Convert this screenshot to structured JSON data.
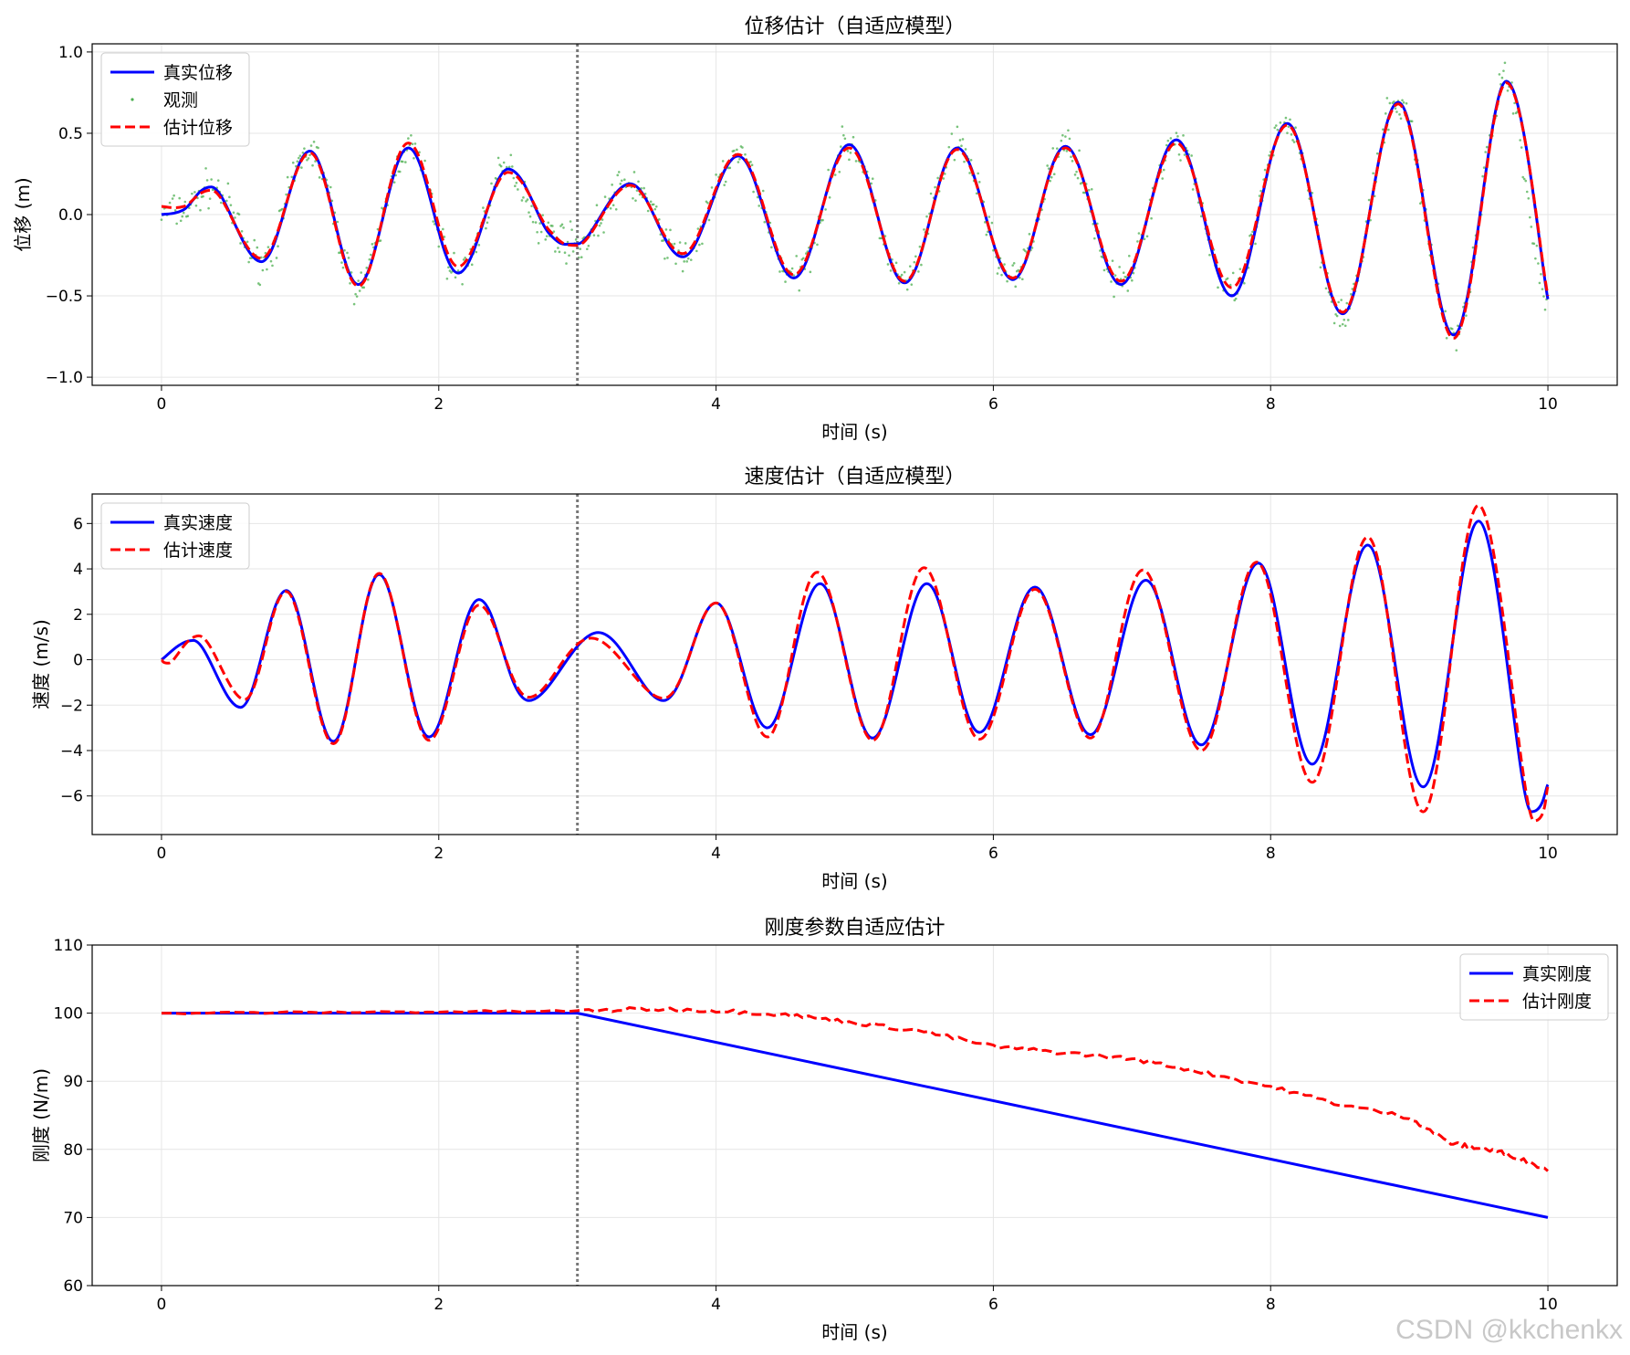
{
  "watermark": "CSDN @kkchenkx",
  "colors": {
    "true_line": "#0000ff",
    "estimate_line": "#ff0000",
    "observation": "#4caf50",
    "change_marker": "#777777",
    "grid": "#e6e6e6"
  },
  "change_time": 3,
  "chart_data": [
    {
      "type": "line",
      "title": "位移估计（自适应模型）",
      "xlabel": "时间 (s)",
      "ylabel": "位移 (m)",
      "xlim": [
        -0.5,
        10.5
      ],
      "ylim": [
        -1.05,
        1.05
      ],
      "xticks": [
        0,
        2,
        4,
        6,
        8,
        10
      ],
      "yticks": [
        -1.0,
        -0.5,
        0.0,
        0.5,
        1.0
      ],
      "ytick_labels": [
        "−1.0",
        "−0.5",
        "0.0",
        "0.5",
        "1.0"
      ],
      "grid": true,
      "legend_position": "upper-left",
      "series": [
        {
          "name": "真实位移",
          "style": "solid",
          "color": "#0000ff",
          "x": [
            0,
            0.16,
            0.36,
            0.72,
            1.07,
            1.42,
            1.78,
            2.14,
            2.5,
            2.8,
            3.0,
            3.38,
            3.76,
            4.16,
            4.56,
            4.96,
            5.36,
            5.74,
            6.14,
            6.52,
            6.92,
            7.32,
            7.72,
            8.12,
            8.52,
            8.92,
            9.32,
            9.7,
            10.0
          ],
          "values": [
            0.0,
            0.03,
            0.17,
            -0.29,
            0.39,
            -0.43,
            0.41,
            -0.36,
            0.28,
            -0.12,
            -0.18,
            0.19,
            -0.26,
            0.36,
            -0.39,
            0.43,
            -0.42,
            0.41,
            -0.4,
            0.42,
            -0.43,
            0.46,
            -0.5,
            0.56,
            -0.61,
            0.69,
            -0.74,
            0.82,
            -0.52
          ]
        },
        {
          "name": "观测",
          "style": "dots",
          "color": "#4caf50"
        },
        {
          "name": "估计位移",
          "style": "dashed",
          "color": "#ff0000",
          "x": [
            0,
            0.16,
            0.36,
            0.72,
            1.07,
            1.42,
            1.78,
            2.14,
            2.5,
            2.8,
            3.0,
            3.38,
            3.76,
            4.16,
            4.56,
            4.96,
            5.36,
            5.74,
            6.14,
            6.52,
            6.92,
            7.32,
            7.72,
            8.12,
            8.52,
            8.92,
            9.32,
            9.7,
            10.0
          ],
          "values": [
            0.05,
            0.05,
            0.15,
            -0.27,
            0.38,
            -0.44,
            0.44,
            -0.32,
            0.26,
            -0.1,
            -0.19,
            0.18,
            -0.24,
            0.37,
            -0.37,
            0.41,
            -0.41,
            0.4,
            -0.39,
            0.41,
            -0.41,
            0.44,
            -0.45,
            0.55,
            -0.6,
            0.68,
            -0.76,
            0.81,
            -0.5
          ]
        }
      ]
    },
    {
      "type": "line",
      "title": "速度估计（自适应模型）",
      "xlabel": "时间 (s)",
      "ylabel": "速度 (m/s)",
      "xlim": [
        -0.5,
        10.5
      ],
      "ylim": [
        -7.7,
        7.3
      ],
      "xticks": [
        0,
        2,
        4,
        6,
        8,
        10
      ],
      "yticks": [
        -6,
        -4,
        -2,
        0,
        2,
        4,
        6
      ],
      "ytick_labels": [
        "−6",
        "−4",
        "−2",
        "0",
        "2",
        "4",
        "6"
      ],
      "grid": true,
      "legend_position": "upper-left",
      "series": [
        {
          "name": "真实速度",
          "style": "solid",
          "color": "#0000ff",
          "x": [
            0,
            0.23,
            0.57,
            0.9,
            1.24,
            1.57,
            1.93,
            2.29,
            2.65,
            3.15,
            3.62,
            4.0,
            4.37,
            4.75,
            5.13,
            5.52,
            5.9,
            6.3,
            6.7,
            7.1,
            7.5,
            7.91,
            8.3,
            8.7,
            9.1,
            9.5,
            9.88,
            10.0
          ],
          "values": [
            0,
            0.85,
            -2.1,
            3.05,
            -3.6,
            3.75,
            -3.4,
            2.65,
            -1.8,
            1.2,
            -1.8,
            2.5,
            -3.0,
            3.35,
            -3.45,
            3.35,
            -3.2,
            3.2,
            -3.3,
            3.5,
            -3.75,
            4.25,
            -4.6,
            5.05,
            -5.6,
            6.1,
            -6.7,
            -5.5
          ]
        },
        {
          "name": "估计速度",
          "style": "dashed",
          "color": "#ff0000",
          "x": [
            0,
            0.05,
            0.27,
            0.6,
            0.9,
            1.24,
            1.57,
            1.93,
            2.29,
            2.65,
            3.1,
            3.62,
            4.0,
            4.37,
            4.73,
            5.13,
            5.5,
            5.9,
            6.3,
            6.7,
            7.08,
            7.5,
            7.9,
            8.3,
            8.7,
            9.1,
            9.5,
            9.9,
            10.0
          ],
          "values": [
            0,
            -0.15,
            1.05,
            -1.75,
            3.0,
            -3.7,
            3.8,
            -3.55,
            2.4,
            -1.65,
            0.95,
            -1.7,
            2.5,
            -3.4,
            3.85,
            -3.55,
            4.05,
            -3.5,
            3.1,
            -3.45,
            3.95,
            -4.0,
            4.3,
            -5.4,
            5.4,
            -6.7,
            6.8,
            -7.1,
            -5.6
          ]
        }
      ]
    },
    {
      "type": "line",
      "title": "刚度参数自适应估计",
      "xlabel": "时间 (s)",
      "ylabel": "刚度 (N/m)",
      "xlim": [
        -0.5,
        10.5
      ],
      "ylim": [
        60,
        110
      ],
      "xticks": [
        0,
        2,
        4,
        6,
        8,
        10
      ],
      "yticks": [
        60,
        70,
        80,
        90,
        100,
        110
      ],
      "ytick_labels": [
        "60",
        "70",
        "80",
        "90",
        "100",
        "110"
      ],
      "grid": true,
      "legend_position": "upper-right",
      "series": [
        {
          "name": "真实刚度",
          "style": "solid",
          "color": "#0000ff",
          "x": [
            0,
            3,
            10
          ],
          "values": [
            100,
            100,
            70
          ]
        },
        {
          "name": "估计刚度",
          "style": "dashed",
          "color": "#ff0000",
          "x": [
            0,
            1,
            2,
            3,
            3.5,
            4,
            4.5,
            5,
            5.5,
            6,
            6.5,
            7,
            7.5,
            8,
            8.5,
            9,
            9.3,
            9.5,
            9.7,
            10
          ],
          "values": [
            100,
            100.1,
            100.2,
            100.3,
            100.6,
            100.4,
            99.8,
            98.6,
            97.3,
            95.1,
            94.2,
            93.3,
            91.4,
            89.2,
            86.6,
            84.7,
            80.9,
            80.2,
            79.4,
            77.0
          ]
        }
      ]
    }
  ]
}
